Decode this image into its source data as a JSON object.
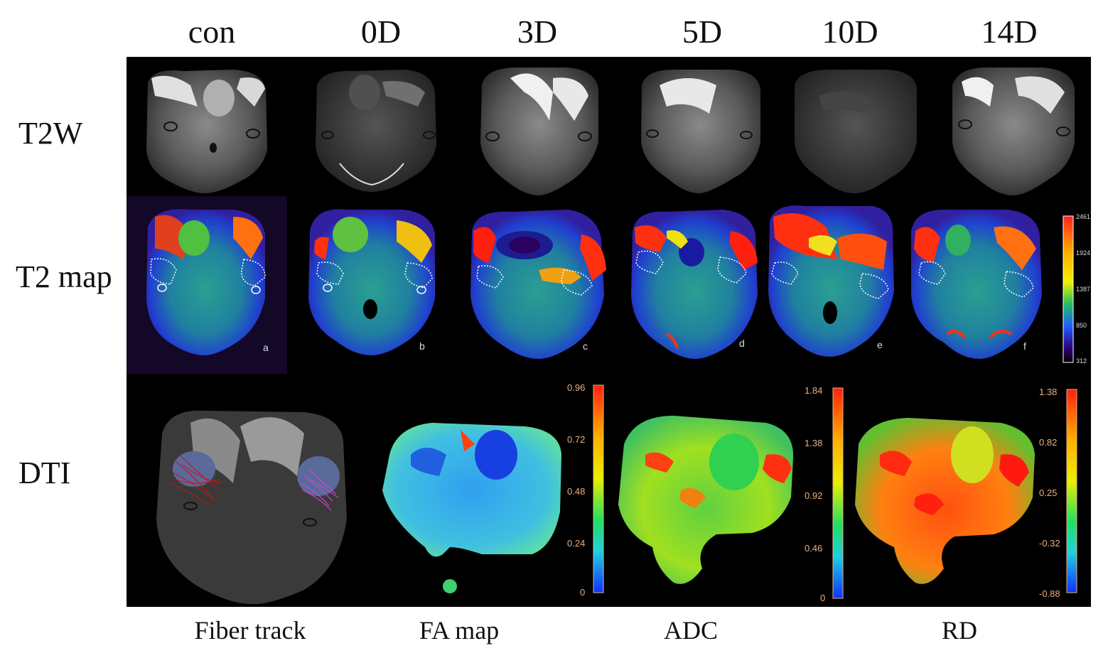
{
  "columns": [
    "con",
    "0D",
    "3D",
    "5D",
    "10D",
    "14D"
  ],
  "rows": [
    "T2W",
    "T2 map",
    "DTI"
  ],
  "panel_letters": [
    "a",
    "b",
    "c",
    "d",
    "e",
    "f"
  ],
  "t2_colorbar_ticks": [
    "2461",
    "1924",
    "1387",
    "850",
    "312"
  ],
  "fa_colorbar_ticks": [
    "0.96",
    "0.72",
    "0.48",
    "0.24",
    "0"
  ],
  "adc_colorbar_ticks": [
    "1.84",
    "1.38",
    "0.92",
    "0.46",
    "0"
  ],
  "rd_colorbar_ticks": [
    "1.38",
    "0.82",
    "0.25",
    "-0.32",
    "-0.88"
  ],
  "bottom_labels": [
    "Fiber track",
    "FA map",
    "ADC",
    "RD"
  ],
  "colors": {
    "background": "#000000",
    "tick_text": "#e8b080"
  }
}
